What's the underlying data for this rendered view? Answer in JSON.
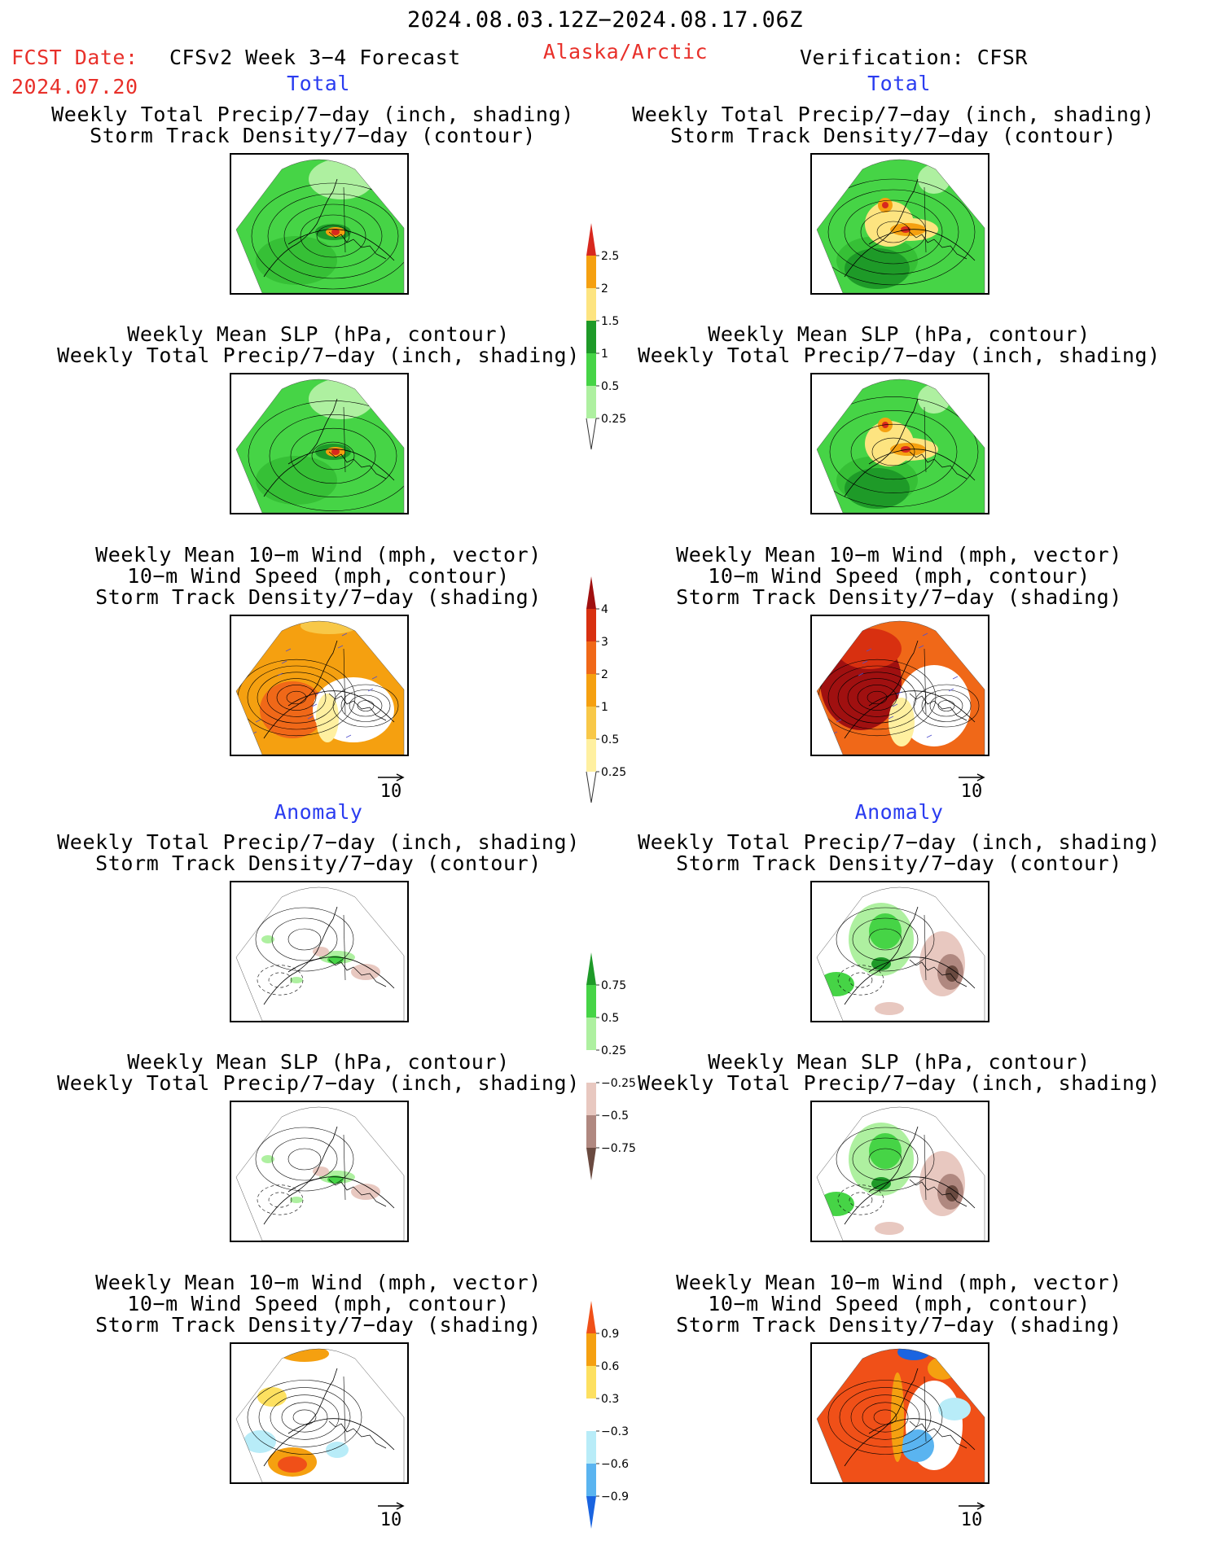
{
  "header": {
    "date_range": "2024.08.03.12Z−2024.08.17.06Z",
    "fcst_label": "FCST Date:",
    "fcst_date": "2024.07.20",
    "model": "CFSv2 Week 3−4 Forecast",
    "region": "Alaska/Arctic",
    "verification": "Verification: CFSR"
  },
  "sections": {
    "total_left": "Total",
    "total_right": "Total",
    "anomaly_left": "Anomaly",
    "anomaly_right": "Anomaly"
  },
  "titles": {
    "precip_track": [
      "Weekly Total Precip/7−day (inch, shading)",
      "Storm Track Density/7−day (contour)"
    ],
    "slp_precip": [
      "Weekly Mean SLP (hPa, contour)",
      "Weekly Total Precip/7−day (inch, shading)"
    ],
    "wind_track": [
      "Weekly Mean 10−m Wind (mph, vector)",
      "10−m Wind Speed (mph, contour)",
      "Storm Track Density/7−day (shading)"
    ]
  },
  "vector_ref": "10",
  "colorbars": {
    "precip_total": {
      "labels": [
        "2.5",
        "2",
        "1.5",
        "1",
        "0.5",
        "0.25"
      ],
      "colors": [
        "#d8281e",
        "#f5a010",
        "#fde480",
        "#1e9a28",
        "#46d446",
        "#aef0a0"
      ]
    },
    "track_total": {
      "labels": [
        "4",
        "3",
        "2",
        "1",
        "0.5",
        "0.25"
      ],
      "colors": [
        "#a01010",
        "#d83010",
        "#f06818",
        "#f5a010",
        "#f8c848",
        "#fff0a0"
      ]
    },
    "precip_anom": {
      "labels": [
        "0.75",
        "0.5",
        "0.25",
        "−0.25",
        "−0.5",
        "−0.75"
      ],
      "colors": [
        "#1e9a28",
        "#46d446",
        "#aef0a0",
        "#ffffff",
        "#e8c8c0",
        "#b08880",
        "#6a4a40"
      ]
    },
    "track_anom": {
      "labels": [
        "0.9",
        "0.6",
        "0.3",
        "−0.3",
        "−0.6",
        "−0.9"
      ],
      "colors": [
        "#f05018",
        "#f5a010",
        "#fde060",
        "#ffffff",
        "#b8ecf8",
        "#5ab4f0",
        "#1a64e0"
      ]
    }
  }
}
